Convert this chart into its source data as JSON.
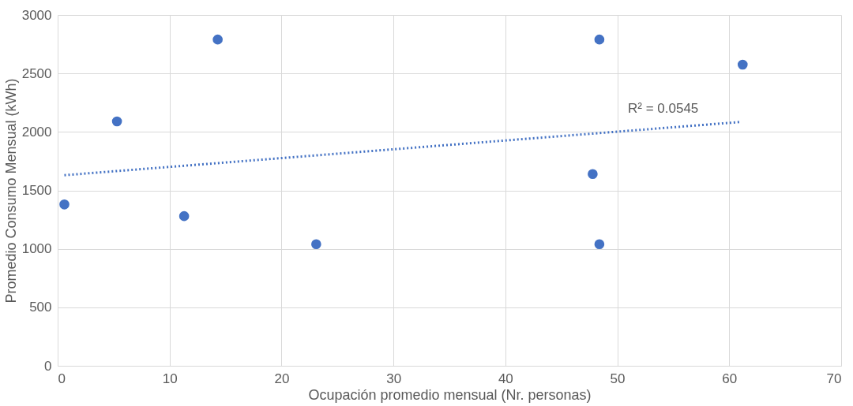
{
  "chart_data": {
    "type": "scatter",
    "xlabel": "Ocupación promedio mensual (Nr. personas)",
    "ylabel": "Promedio Consumo Mensual (kWh)",
    "series": [
      {
        "color": "#4472c4",
        "marker": "circle",
        "x": [
          0.6,
          5.3,
          11.3,
          14.3,
          23.1,
          47.8,
          48.4,
          48.4,
          61.2
        ],
        "values": [
          1380,
          2090,
          1280,
          2790,
          1040,
          1640,
          1040,
          2790,
          2575
        ]
      },
      {
        "type": "line",
        "color": "#4472c4",
        "line_style": "dotted",
        "marker": "none",
        "x": [
          0.6,
          61.0
        ],
        "values": [
          1630,
          2085
        ]
      }
    ],
    "annotations": [
      "R² = 0.0545"
    ],
    "xlim": [
      0,
      70
    ],
    "xticks": [
      0,
      10,
      20,
      30,
      40,
      50,
      60,
      70
    ],
    "ylim": [
      0,
      3000
    ],
    "yticks": [
      0,
      500,
      1000,
      1500,
      2000,
      2500,
      3000
    ],
    "grid": true,
    "legend": false
  }
}
